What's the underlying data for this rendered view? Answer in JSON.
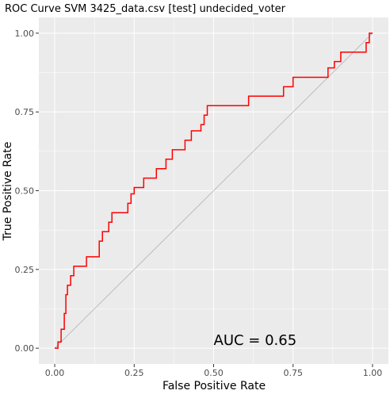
{
  "chart_data": {
    "type": "line",
    "title": "ROC Curve SVM 3425_data.csv [test] undecided_voter",
    "xlabel": "False Positive Rate",
    "ylabel": "True Positive Rate",
    "xlim": [
      -0.05,
      1.05
    ],
    "ylim": [
      -0.05,
      1.05
    ],
    "x_ticks": [
      0.0,
      0.25,
      0.5,
      0.75,
      1.0
    ],
    "x_tick_labels": [
      "0.00",
      "0.25",
      "0.50",
      "0.75",
      "1.00"
    ],
    "y_ticks": [
      0.0,
      0.25,
      0.5,
      0.75,
      1.0
    ],
    "y_tick_labels": [
      "0.00",
      "0.25",
      "0.50",
      "0.75",
      "1.00"
    ],
    "grid": true,
    "annotation": {
      "text": "AUC = 0.65",
      "x": 0.5,
      "y": 0.01
    },
    "colors": {
      "roc": "#ff0000",
      "diagonal": "#bdbdbd",
      "panel": "#ebebeb",
      "grid": "#ffffff"
    },
    "series": [
      {
        "name": "",
        "x": [
          0.0,
          0.01,
          0.01,
          0.02,
          0.02,
          0.03,
          0.03,
          0.035,
          0.035,
          0.04,
          0.04,
          0.05,
          0.05,
          0.06,
          0.06,
          0.1,
          0.1,
          0.14,
          0.14,
          0.15,
          0.15,
          0.17,
          0.17,
          0.18,
          0.18,
          0.23,
          0.23,
          0.24,
          0.24,
          0.25,
          0.25,
          0.28,
          0.28,
          0.28,
          0.28,
          0.32,
          0.32,
          0.35,
          0.35,
          0.37,
          0.37,
          0.41,
          0.41,
          0.43,
          0.43,
          0.46,
          0.46,
          0.47,
          0.47,
          0.48,
          0.48,
          0.5,
          0.5,
          0.61,
          0.61,
          0.72,
          0.72,
          0.75,
          0.75,
          0.86,
          0.86,
          0.88,
          0.88,
          0.9,
          0.9,
          0.98,
          0.98,
          0.99,
          0.99,
          1.0
        ],
        "y": [
          0.0,
          0.0,
          0.02,
          0.02,
          0.06,
          0.06,
          0.11,
          0.11,
          0.17,
          0.17,
          0.2,
          0.2,
          0.23,
          0.23,
          0.26,
          0.26,
          0.29,
          0.29,
          0.34,
          0.34,
          0.37,
          0.37,
          0.4,
          0.4,
          0.43,
          0.43,
          0.46,
          0.46,
          0.49,
          0.49,
          0.51,
          0.51,
          0.54,
          0.54,
          0.54,
          0.54,
          0.57,
          0.57,
          0.6,
          0.6,
          0.63,
          0.63,
          0.66,
          0.66,
          0.69,
          0.69,
          0.71,
          0.71,
          0.74,
          0.74,
          0.77,
          0.77,
          0.77,
          0.77,
          0.8,
          0.8,
          0.83,
          0.83,
          0.86,
          0.86,
          0.89,
          0.89,
          0.91,
          0.91,
          0.94,
          0.94,
          0.97,
          0.97,
          1.0,
          1.0
        ]
      }
    ]
  }
}
